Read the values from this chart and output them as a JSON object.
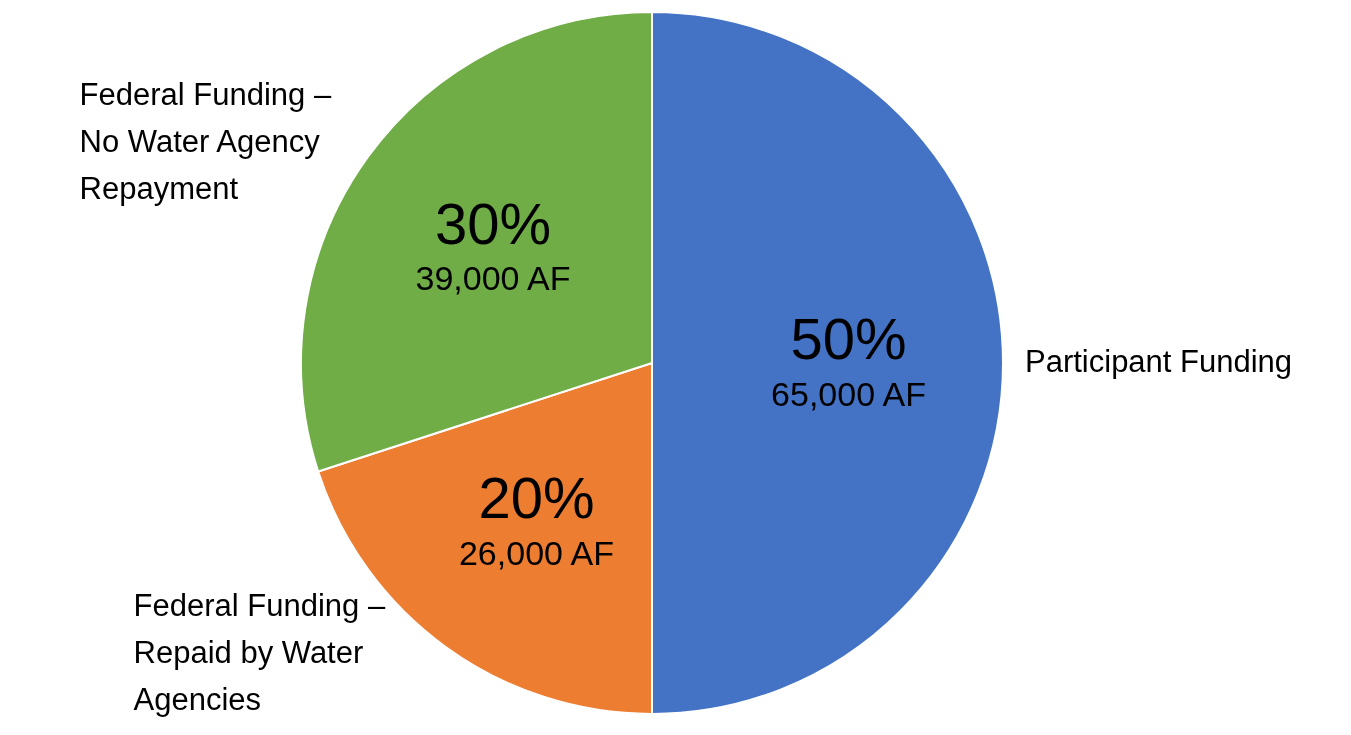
{
  "chart_data": {
    "type": "pie",
    "categories": [
      "Participant Funding",
      "Federal Funding – Repaid by Water Agencies",
      "Federal Funding – No Water Agency Repayment"
    ],
    "values": [
      65000,
      26000,
      39000
    ],
    "colors": [
      "#4472c4",
      "#ed7d31",
      "#70ad47"
    ],
    "value_labels": [
      "50%\n65,000 AF",
      "20%\n26,000 AF",
      "30%\n39,000 AF"
    ],
    "legend": false
  }
}
